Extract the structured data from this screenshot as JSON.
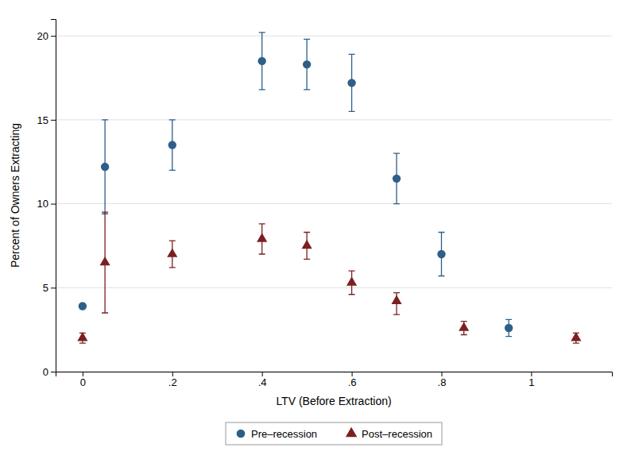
{
  "chart_data": {
    "type": "scatter",
    "xlabel": "LTV (Before Extraction)",
    "ylabel": "Percent of Owners Extracting",
    "xlim": [
      -0.06,
      1.18
    ],
    "ylim": [
      0,
      21
    ],
    "xticks": [
      0,
      {
        "value": 0.2,
        "label": ".2"
      },
      {
        "value": 0.4,
        "label": ".4"
      },
      {
        "value": 0.6,
        "label": ".6"
      },
      {
        "value": 0.8,
        "label": ".8"
      },
      1
    ],
    "yticks": [
      0,
      5,
      10,
      15,
      20
    ],
    "grid": "y",
    "legend": "bottom",
    "series": [
      {
        "name": "Pre–recession",
        "color": "#2E5F8A",
        "marker": "circle",
        "x": [
          0.0,
          0.05,
          0.2,
          0.4,
          0.5,
          0.6,
          0.7,
          0.8,
          0.95
        ],
        "values": [
          3.9,
          12.2,
          13.5,
          18.5,
          18.3,
          17.2,
          11.5,
          7.0,
          2.6
        ],
        "error_lo": [
          0.0,
          2.8,
          1.5,
          1.7,
          1.5,
          1.7,
          1.5,
          1.3,
          0.5
        ],
        "error_hi": [
          0.0,
          2.8,
          1.5,
          1.7,
          1.5,
          1.7,
          1.5,
          1.3,
          0.5
        ]
      },
      {
        "name": "Post–recession",
        "color": "#7B2020",
        "marker": "triangle",
        "x": [
          0.0,
          0.05,
          0.2,
          0.4,
          0.5,
          0.6,
          0.7,
          0.85,
          1.1
        ],
        "values": [
          2.0,
          6.5,
          7.0,
          7.9,
          7.5,
          5.3,
          4.2,
          2.6,
          2.0
        ],
        "error_lo": [
          0.3,
          3.0,
          0.8,
          0.9,
          0.8,
          0.7,
          0.8,
          0.4,
          0.3
        ],
        "error_hi": [
          0.3,
          3.0,
          0.8,
          0.9,
          0.8,
          0.7,
          0.5,
          0.4,
          0.3
        ]
      }
    ]
  }
}
